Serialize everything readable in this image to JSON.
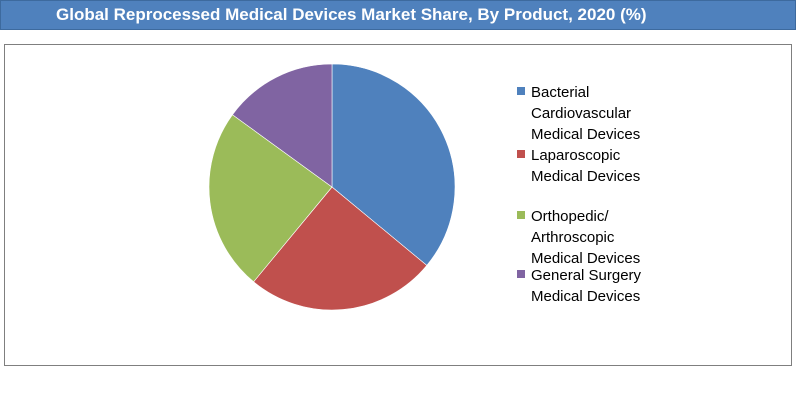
{
  "title": "Global Reprocessed Medical Devices Market Share, By Product, 2020 (%)",
  "chart_data": {
    "type": "pie",
    "title": "Global Reprocessed Medical Devices Market Share, By Product, 2020 (%)",
    "categories": [
      "Bacterial Cardiovascular Medical Devices",
      "Laparoscopic Medical Devices",
      "Orthopedic/ Arthroscopic Medical Devices",
      "General Surgery Medical Devices"
    ],
    "values": [
      36,
      25,
      24,
      15
    ],
    "unit": "%",
    "start_angle": "12 o'clock",
    "direction": "clockwise",
    "legend_position": "right",
    "colors": [
      "#4f81bd",
      "#c0504d",
      "#9bbb59",
      "#8064a2"
    ]
  },
  "legend": [
    {
      "lines": [
        "Bacterial",
        "Cardiovascular",
        "Medical Devices"
      ],
      "color": "#4f81bd"
    },
    {
      "lines": [
        "Laparoscopic",
        "Medical Devices"
      ],
      "color": "#c0504d"
    },
    {
      "lines": [
        "Orthopedic/",
        "Arthroscopic",
        "Medical Devices"
      ],
      "color": "#9bbb59"
    },
    {
      "lines": [
        "General Surgery",
        "Medical Devices"
      ],
      "color": "#8064a2"
    }
  ]
}
